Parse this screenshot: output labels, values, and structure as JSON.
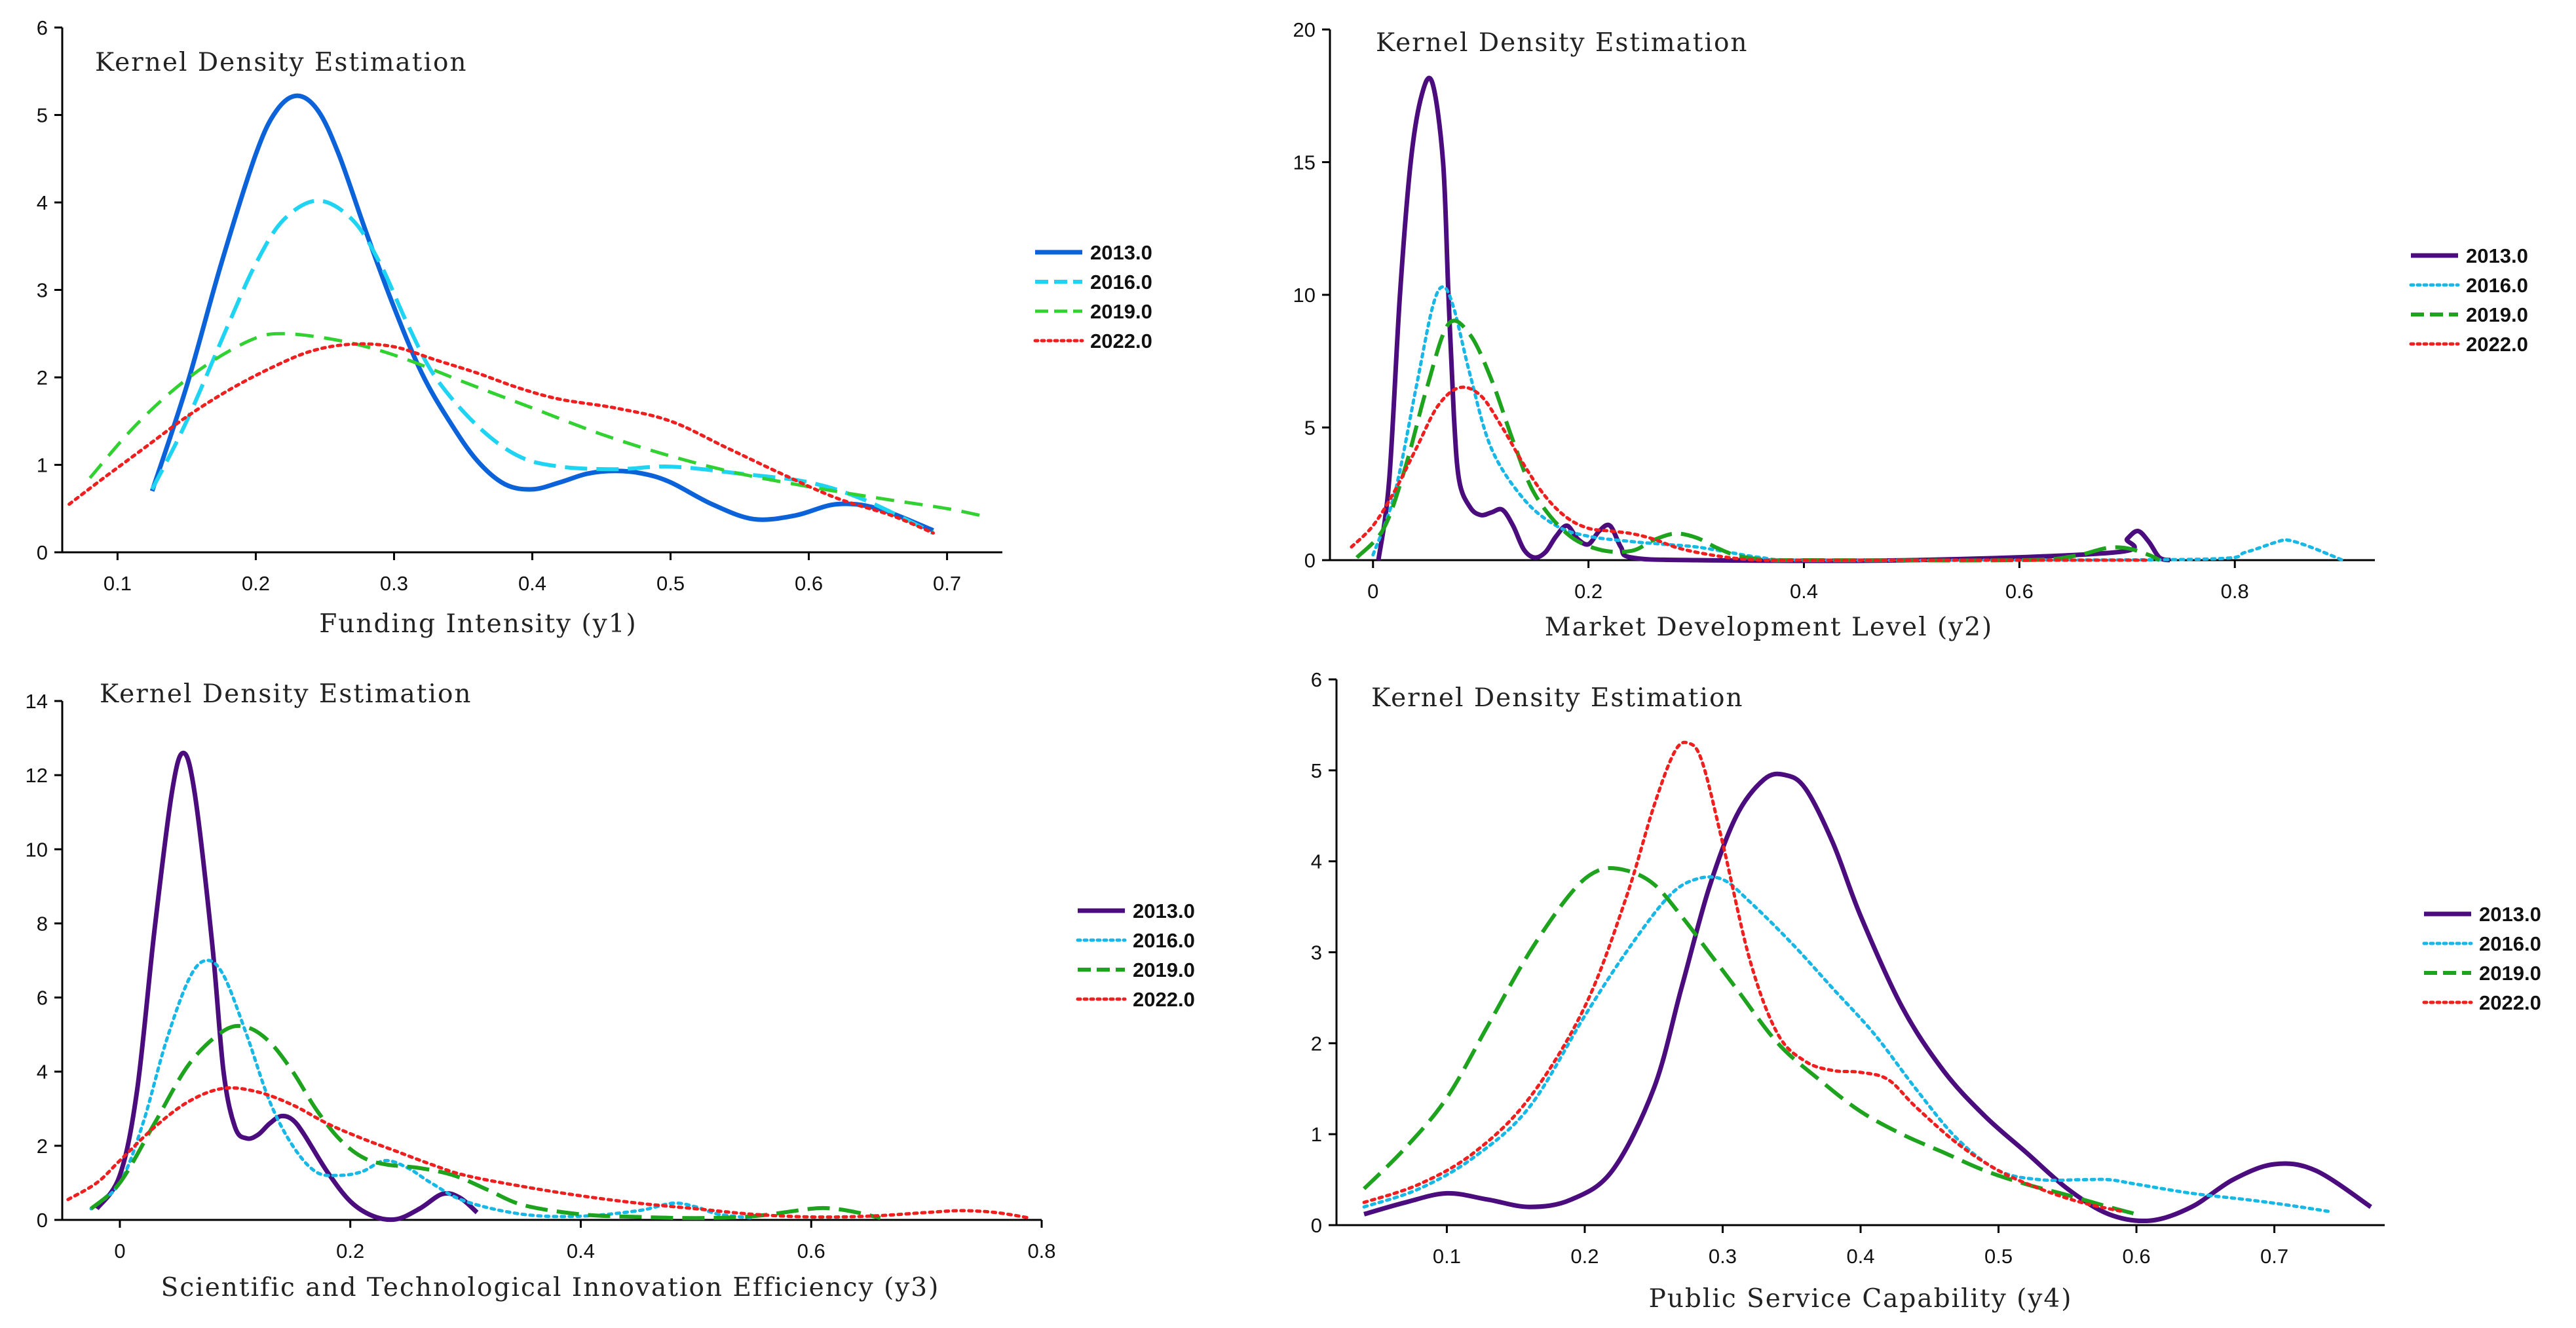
{
  "colors": {
    "2013.0": "#4b0c7e",
    "2013.0_y1": "#0b62d9",
    "2016.0": "#17b7e6",
    "2016.0_y1": "#1fd3f2",
    "2019.0": "#1ea31e",
    "2019.0_y1": "#31d131",
    "2022.0": "#f01f1f",
    "axis": "#000000"
  },
  "chart_data": [
    {
      "type": "line",
      "title": "Kernel  Density  Estimation",
      "xlabel": "Funding Intensity (y1)",
      "ylabel": "",
      "xlim": [
        0.06,
        0.74
      ],
      "ylim": [
        0,
        6
      ],
      "xticks": [
        0.1,
        0.2,
        0.3,
        0.4,
        0.5,
        0.6,
        0.7
      ],
      "yticks": [
        0,
        1,
        2,
        3,
        4,
        5,
        6
      ],
      "series": [
        {
          "name": "2013.0",
          "style": "solid",
          "color_key": "2013.0_y1",
          "x": [
            0.125,
            0.15,
            0.175,
            0.2,
            0.215,
            0.23,
            0.245,
            0.26,
            0.28,
            0.3,
            0.32,
            0.34,
            0.36,
            0.38,
            0.4,
            0.42,
            0.44,
            0.46,
            0.48,
            0.5,
            0.53,
            0.56,
            0.59,
            0.62,
            0.65,
            0.69
          ],
          "y": [
            0.7,
            1.9,
            3.3,
            4.55,
            5.05,
            5.22,
            5.05,
            4.55,
            3.65,
            2.8,
            2.05,
            1.5,
            1.05,
            0.78,
            0.72,
            0.8,
            0.9,
            0.93,
            0.9,
            0.8,
            0.55,
            0.38,
            0.42,
            0.55,
            0.5,
            0.25
          ]
        },
        {
          "name": "2016.0",
          "style": "dash",
          "color_key": "2016.0_y1",
          "x": [
            0.125,
            0.15,
            0.18,
            0.2,
            0.22,
            0.245,
            0.27,
            0.29,
            0.31,
            0.33,
            0.36,
            0.39,
            0.42,
            0.46,
            0.5,
            0.55,
            0.6,
            0.64,
            0.69
          ],
          "y": [
            0.72,
            1.5,
            2.6,
            3.3,
            3.8,
            4.02,
            3.8,
            3.3,
            2.6,
            2.0,
            1.45,
            1.1,
            0.98,
            0.95,
            0.98,
            0.9,
            0.8,
            0.6,
            0.22
          ]
        },
        {
          "name": "2019.0",
          "style": "longdash",
          "color_key": "2019.0_y1",
          "x": [
            0.08,
            0.11,
            0.14,
            0.17,
            0.2,
            0.22,
            0.25,
            0.28,
            0.31,
            0.35,
            0.4,
            0.45,
            0.5,
            0.55,
            0.6,
            0.65,
            0.7,
            0.73
          ],
          "y": [
            0.85,
            1.4,
            1.85,
            2.2,
            2.45,
            2.5,
            2.45,
            2.35,
            2.2,
            1.95,
            1.65,
            1.35,
            1.1,
            0.9,
            0.75,
            0.62,
            0.5,
            0.4
          ]
        },
        {
          "name": "2022.0",
          "style": "dot",
          "color_key": "2022.0",
          "x": [
            0.065,
            0.09,
            0.12,
            0.15,
            0.18,
            0.21,
            0.24,
            0.27,
            0.3,
            0.33,
            0.36,
            0.39,
            0.42,
            0.46,
            0.5,
            0.54,
            0.58,
            0.62,
            0.66,
            0.69
          ],
          "y": [
            0.55,
            0.85,
            1.2,
            1.55,
            1.85,
            2.1,
            2.3,
            2.38,
            2.35,
            2.2,
            2.05,
            1.88,
            1.75,
            1.65,
            1.5,
            1.2,
            0.9,
            0.62,
            0.42,
            0.22
          ]
        }
      ]
    },
    {
      "type": "line",
      "title": "Kernel  Density  Estimation",
      "xlabel": "Market Development Level (y2)",
      "ylabel": "",
      "xlim": [
        -0.04,
        0.93
      ],
      "ylim": [
        0,
        20
      ],
      "xticks": [
        0,
        0.2,
        0.4,
        0.6,
        0.8
      ],
      "yticks": [
        0,
        5,
        10,
        15,
        20
      ],
      "series": [
        {
          "name": "2013.0",
          "style": "solid",
          "color_key": "2013.0",
          "x": [
            0.005,
            0.015,
            0.025,
            0.035,
            0.045,
            0.055,
            0.065,
            0.07,
            0.075,
            0.08,
            0.09,
            0.1,
            0.11,
            0.12,
            0.13,
            0.14,
            0.15,
            0.16,
            0.17,
            0.18,
            0.19,
            0.2,
            0.21,
            0.22,
            0.23,
            0.24,
            0.3,
            0.5,
            0.69,
            0.7,
            0.71,
            0.72,
            0.73,
            0.74
          ],
          "y": [
            0,
            3,
            10,
            15,
            17.5,
            18,
            15,
            10,
            5.5,
            3,
            2,
            1.7,
            1.8,
            1.9,
            1.3,
            0.4,
            0.1,
            0.3,
            0.9,
            1.3,
            0.8,
            0.6,
            1.1,
            1.3,
            0.5,
            0.1,
            0,
            0,
            0.3,
            0.8,
            1.1,
            0.7,
            0.1,
            0
          ]
        },
        {
          "name": "2016.0",
          "style": "dot",
          "color_key": "2016.0",
          "x": [
            0.0,
            0.02,
            0.04,
            0.055,
            0.065,
            0.075,
            0.09,
            0.11,
            0.14,
            0.17,
            0.2,
            0.24,
            0.27,
            0.3,
            0.33,
            0.36,
            0.4,
            0.6,
            0.78,
            0.81,
            0.84,
            0.85,
            0.87,
            0.9
          ],
          "y": [
            0.2,
            2.5,
            6.5,
            9.5,
            10.3,
            9.5,
            7.0,
            4.2,
            2.3,
            1.3,
            0.9,
            0.7,
            0.6,
            0.5,
            0.3,
            0.1,
            0,
            0,
            0.05,
            0.3,
            0.7,
            0.75,
            0.5,
            0
          ]
        },
        {
          "name": "2019.0",
          "style": "dash",
          "color_key": "2019.0",
          "x": [
            -0.015,
            0.01,
            0.03,
            0.05,
            0.07,
            0.09,
            0.11,
            0.13,
            0.15,
            0.18,
            0.21,
            0.24,
            0.26,
            0.28,
            0.3,
            0.32,
            0.34,
            0.37,
            0.4,
            0.6,
            0.65,
            0.68,
            0.7,
            0.72,
            0.73
          ],
          "y": [
            0.1,
            1.2,
            3.5,
            6.5,
            8.9,
            8.5,
            6.8,
            4.5,
            2.5,
            1.0,
            0.4,
            0.35,
            0.75,
            1.0,
            0.85,
            0.45,
            0.15,
            0,
            0,
            0,
            0.15,
            0.45,
            0.45,
            0.2,
            0
          ]
        },
        {
          "name": "2022.0",
          "style": "dot",
          "color_key": "2022.0",
          "x": [
            -0.02,
            0.0,
            0.02,
            0.04,
            0.06,
            0.08,
            0.1,
            0.12,
            0.14,
            0.16,
            0.18,
            0.2,
            0.22,
            0.24,
            0.26,
            0.28,
            0.3,
            0.33,
            0.36,
            0.4,
            0.6,
            0.7,
            0.72
          ],
          "y": [
            0.5,
            1.3,
            2.6,
            4.2,
            5.8,
            6.5,
            6.2,
            5.0,
            3.6,
            2.4,
            1.6,
            1.2,
            1.1,
            1.0,
            0.8,
            0.5,
            0.3,
            0.1,
            0,
            0,
            0,
            0,
            0
          ]
        }
      ]
    },
    {
      "type": "line",
      "title": "Kernel  Density  Estimation",
      "xlabel": "Scientific and Technological Innovation Efficiency (y3)",
      "ylabel": "",
      "xlim": [
        -0.05,
        0.8
      ],
      "ylim": [
        0,
        14
      ],
      "xticks": [
        0,
        0.2,
        0.4,
        0.6,
        0.8
      ],
      "yticks": [
        0,
        2,
        4,
        6,
        8,
        10,
        12,
        14
      ],
      "series": [
        {
          "name": "2013.0",
          "style": "solid",
          "color_key": "2013.0",
          "x": [
            -0.02,
            0.0,
            0.015,
            0.03,
            0.045,
            0.055,
            0.065,
            0.08,
            0.09,
            0.1,
            0.11,
            0.12,
            0.13,
            0.14,
            0.15,
            0.16,
            0.18,
            0.2,
            0.22,
            0.24,
            0.26,
            0.28,
            0.295,
            0.31
          ],
          "y": [
            0.3,
            1.2,
            3.5,
            7.8,
            11.5,
            12.6,
            11.5,
            7.5,
            4.0,
            2.5,
            2.2,
            2.3,
            2.6,
            2.8,
            2.7,
            2.3,
            1.3,
            0.5,
            0.1,
            0.02,
            0.3,
            0.7,
            0.6,
            0.2
          ]
        },
        {
          "name": "2016.0",
          "style": "dot",
          "color_key": "2016.0",
          "x": [
            -0.025,
            0.0,
            0.02,
            0.04,
            0.06,
            0.075,
            0.09,
            0.11,
            0.13,
            0.15,
            0.17,
            0.19,
            0.21,
            0.23,
            0.25,
            0.27,
            0.3,
            0.35,
            0.4,
            0.45,
            0.48,
            0.5,
            0.52,
            0.55
          ],
          "y": [
            0.3,
            1.0,
            2.6,
            4.8,
            6.5,
            7.0,
            6.6,
            5.0,
            3.2,
            2.0,
            1.3,
            1.2,
            1.3,
            1.6,
            1.4,
            1.0,
            0.5,
            0.15,
            0.1,
            0.25,
            0.45,
            0.35,
            0.15,
            0.05
          ]
        },
        {
          "name": "2019.0",
          "style": "dash",
          "color_key": "2019.0",
          "x": [
            -0.025,
            0.0,
            0.03,
            0.06,
            0.09,
            0.11,
            0.13,
            0.15,
            0.17,
            0.19,
            0.21,
            0.23,
            0.26,
            0.29,
            0.32,
            0.35,
            0.4,
            0.45,
            0.5,
            0.55,
            0.6,
            0.62,
            0.64,
            0.66
          ],
          "y": [
            0.3,
            1.0,
            2.6,
            4.2,
            5.1,
            5.2,
            4.8,
            4.0,
            3.0,
            2.2,
            1.7,
            1.5,
            1.4,
            1.2,
            0.8,
            0.4,
            0.15,
            0.08,
            0.05,
            0.1,
            0.3,
            0.3,
            0.2,
            0.05
          ]
        },
        {
          "name": "2022.0",
          "style": "dot",
          "color_key": "2022.0",
          "x": [
            -0.045,
            -0.02,
            0.0,
            0.03,
            0.06,
            0.09,
            0.12,
            0.15,
            0.18,
            0.21,
            0.24,
            0.27,
            0.3,
            0.35,
            0.4,
            0.45,
            0.5,
            0.55,
            0.6,
            0.65,
            0.7,
            0.73,
            0.76,
            0.79
          ],
          "y": [
            0.55,
            1.0,
            1.6,
            2.5,
            3.2,
            3.55,
            3.45,
            3.1,
            2.6,
            2.2,
            1.85,
            1.5,
            1.2,
            0.9,
            0.65,
            0.45,
            0.3,
            0.15,
            0.08,
            0.1,
            0.2,
            0.25,
            0.2,
            0.05
          ]
        }
      ]
    },
    {
      "type": "line",
      "title": "Kernel  Density  Estimation",
      "xlabel": "Public Service Capability (y4)",
      "ylabel": "",
      "xlim": [
        0.02,
        0.78
      ],
      "ylim": [
        0,
        6
      ],
      "xticks": [
        0.1,
        0.2,
        0.3,
        0.4,
        0.5,
        0.6,
        0.7
      ],
      "yticks": [
        0,
        1,
        2,
        3,
        4,
        5,
        6
      ],
      "series": [
        {
          "name": "2013.0",
          "style": "solid",
          "color_key": "2013.0",
          "x": [
            0.04,
            0.07,
            0.1,
            0.13,
            0.16,
            0.19,
            0.22,
            0.25,
            0.27,
            0.29,
            0.31,
            0.33,
            0.345,
            0.36,
            0.38,
            0.4,
            0.43,
            0.46,
            0.49,
            0.52,
            0.55,
            0.58,
            0.61,
            0.64,
            0.67,
            0.7,
            0.73,
            0.77
          ],
          "y": [
            0.12,
            0.25,
            0.35,
            0.28,
            0.2,
            0.28,
            0.6,
            1.5,
            2.6,
            3.7,
            4.5,
            4.9,
            4.95,
            4.8,
            4.2,
            3.4,
            2.4,
            1.7,
            1.2,
            0.8,
            0.4,
            0.12,
            0.05,
            0.2,
            0.5,
            0.67,
            0.6,
            0.2
          ]
        },
        {
          "name": "2016.0",
          "style": "dot",
          "color_key": "2016.0",
          "x": [
            0.04,
            0.08,
            0.12,
            0.16,
            0.2,
            0.23,
            0.26,
            0.28,
            0.3,
            0.32,
            0.35,
            0.38,
            0.41,
            0.44,
            0.47,
            0.5,
            0.53,
            0.56,
            0.58,
            0.6,
            0.64,
            0.68,
            0.71,
            0.74
          ],
          "y": [
            0.2,
            0.4,
            0.75,
            1.3,
            2.3,
            3.0,
            3.6,
            3.8,
            3.8,
            3.55,
            3.1,
            2.6,
            2.1,
            1.5,
            0.95,
            0.6,
            0.5,
            0.5,
            0.5,
            0.45,
            0.35,
            0.28,
            0.22,
            0.15
          ]
        },
        {
          "name": "2019.0",
          "style": "dash",
          "color_key": "2019.0",
          "x": [
            0.04,
            0.07,
            0.1,
            0.13,
            0.16,
            0.19,
            0.21,
            0.23,
            0.25,
            0.27,
            0.29,
            0.31,
            0.34,
            0.37,
            0.4,
            0.43,
            0.46,
            0.49,
            0.52,
            0.55,
            0.58,
            0.6
          ],
          "y": [
            0.4,
            0.85,
            1.4,
            2.2,
            3.0,
            3.65,
            3.9,
            3.9,
            3.75,
            3.4,
            3.0,
            2.6,
            2.0,
            1.6,
            1.25,
            1.0,
            0.8,
            0.6,
            0.45,
            0.33,
            0.2,
            0.12
          ]
        },
        {
          "name": "2022.0",
          "style": "dot",
          "color_key": "2022.0",
          "x": [
            0.04,
            0.08,
            0.12,
            0.16,
            0.2,
            0.23,
            0.25,
            0.265,
            0.275,
            0.285,
            0.3,
            0.32,
            0.34,
            0.36,
            0.38,
            0.4,
            0.42,
            0.44,
            0.47,
            0.5,
            0.53,
            0.56,
            0.59
          ],
          "y": [
            0.25,
            0.45,
            0.8,
            1.4,
            2.4,
            3.6,
            4.6,
            5.2,
            5.3,
            5.1,
            4.2,
            2.9,
            2.1,
            1.8,
            1.7,
            1.68,
            1.6,
            1.3,
            0.9,
            0.6,
            0.4,
            0.25,
            0.15
          ]
        }
      ]
    }
  ]
}
